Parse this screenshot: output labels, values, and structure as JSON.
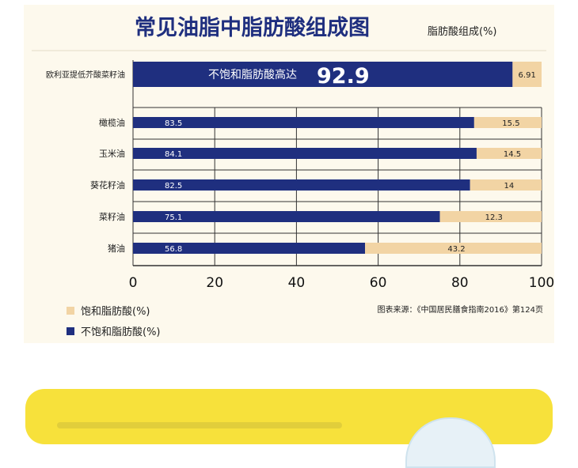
{
  "colors": {
    "unsaturated": "#1f2f7f",
    "saturated": "#f2d4a4",
    "title": "#1f2f7f",
    "text": "#222222",
    "grid": "#333333",
    "background": "#fdf9ed",
    "card": "#f7e13b"
  },
  "chart_data": {
    "type": "bar",
    "orientation": "horizontal",
    "stacked": true,
    "title": "常见油脂中脂肪酸组成图",
    "subtitle": "脂肪酸组成(%)",
    "xlim": [
      0,
      100
    ],
    "xticks": [
      0,
      20,
      40,
      60,
      80,
      100
    ],
    "grid": true,
    "legend_position": "bottom-left",
    "categories": [
      "欧利亚提低芥酸菜籽油",
      "橄榄油",
      "玉米油",
      "葵花籽油",
      "菜籽油",
      "猪油"
    ],
    "series": [
      {
        "name": "不饱和脂肪酸(%)",
        "values": [
          92.9,
          83.5,
          84.1,
          82.5,
          75.1,
          56.8
        ]
      },
      {
        "name": "饱和脂肪酸(%)",
        "values": [
          6.91,
          15.5,
          14.5,
          14,
          12.3,
          43.2
        ]
      }
    ],
    "highlight_label": "不饱和脂肪酸高达",
    "highlight_value": "92.9",
    "source": "图表来源：《中国居民膳食指南2016》第124页"
  }
}
